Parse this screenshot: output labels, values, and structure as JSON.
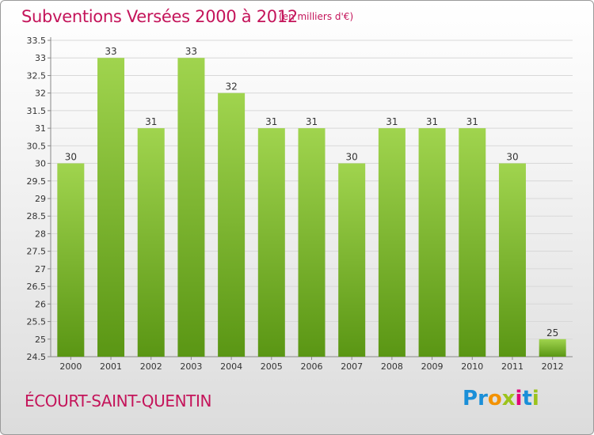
{
  "header": {
    "title": "Subventions Versées 2000 à 2012",
    "unit_note": "(en milliers d'€)"
  },
  "footer": {
    "commune": "ÉCOURT-SAINT-QUENTIN",
    "brand": [
      {
        "ch": "P",
        "color": "#1a8fd8"
      },
      {
        "ch": "r",
        "color": "#1a8fd8"
      },
      {
        "ch": "o",
        "color": "#f39200"
      },
      {
        "ch": "x",
        "color": "#9bc31c"
      },
      {
        "ch": "i",
        "color": "#e2007a"
      },
      {
        "ch": "t",
        "color": "#1a8fd8"
      },
      {
        "ch": "i",
        "color": "#9bc31c"
      }
    ]
  },
  "colors": {
    "title": "#c4145a",
    "bar_top": "#a0d44e",
    "bar_bottom": "#5a9614",
    "grid": "#d8d8d8"
  },
  "chart_data": {
    "type": "bar",
    "categories": [
      "2000",
      "2001",
      "2002",
      "2003",
      "2004",
      "2005",
      "2006",
      "2007",
      "2008",
      "2009",
      "2010",
      "2011",
      "2012"
    ],
    "values": [
      30,
      33,
      31,
      33,
      32,
      31,
      31,
      30,
      31,
      31,
      31,
      30,
      25
    ],
    "data_labels": [
      "30",
      "33",
      "31",
      "33",
      "32",
      "31",
      "31",
      "30",
      "31",
      "31",
      "31",
      "30",
      "25"
    ],
    "ylim": [
      24.5,
      33.5
    ],
    "yticks": [
      "24.5",
      "25",
      "25.5",
      "26",
      "26.5",
      "27",
      "27.5",
      "28",
      "28.5",
      "29",
      "29.5",
      "30",
      "30.5",
      "31",
      "31.5",
      "32",
      "32.5",
      "33",
      "33.5"
    ],
    "grid": true,
    "legend": "none"
  }
}
